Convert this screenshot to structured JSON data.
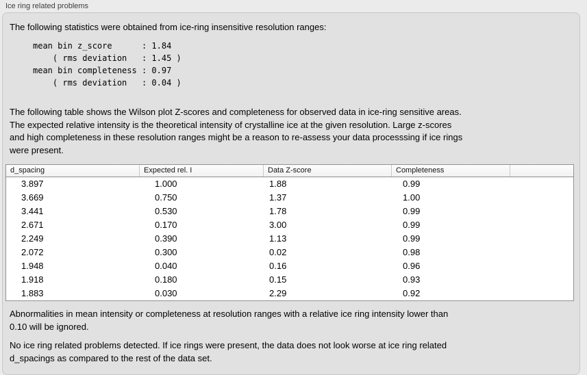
{
  "panel": {
    "title": "Ice ring related problems"
  },
  "intro": "The following statistics were obtained from ice-ring insensitive resolution ranges:",
  "stats_block": "mean bin z_score      : 1.84\n    ( rms deviation   : 1.45 )\nmean bin completeness : 0.97\n    ( rms deviation   : 0.04 )",
  "description": "The following table shows the Wilson plot Z-scores and completeness for observed data in ice-ring sensitive areas.\nThe expected relative intensity is the theoretical intensity of crystalline ice at the given resolution. Large z-scores\nand high completeness in these resolution ranges might be a reason to re-assess your data processsing if ice rings\nwere present.",
  "table": {
    "columns": [
      "d_spacing",
      "Expected rel. I",
      "Data Z-score",
      "Completeness",
      ""
    ],
    "rows": [
      [
        "3.897",
        "1.000",
        "1.88",
        "0.99"
      ],
      [
        "3.669",
        "0.750",
        "1.37",
        "1.00"
      ],
      [
        "3.441",
        "0.530",
        "1.78",
        "0.99"
      ],
      [
        "2.671",
        "0.170",
        "3.00",
        "0.99"
      ],
      [
        "2.249",
        "0.390",
        "1.13",
        "0.99"
      ],
      [
        "2.072",
        "0.300",
        "0.02",
        "0.98"
      ],
      [
        "1.948",
        "0.040",
        "0.16",
        "0.96"
      ],
      [
        "1.918",
        "0.180",
        "0.15",
        "0.93"
      ],
      [
        "1.883",
        "0.030",
        "2.29",
        "0.92"
      ]
    ]
  },
  "note_ignored": "Abnormalities in mean intensity or completeness at resolution ranges with a relative ice ring intensity lower than\n0.10 will be ignored.",
  "note_conclusion": "No ice ring related problems detected. If ice rings were present, the data does not look worse at ice ring related\nd_spacings as compared to the rest of the data set."
}
